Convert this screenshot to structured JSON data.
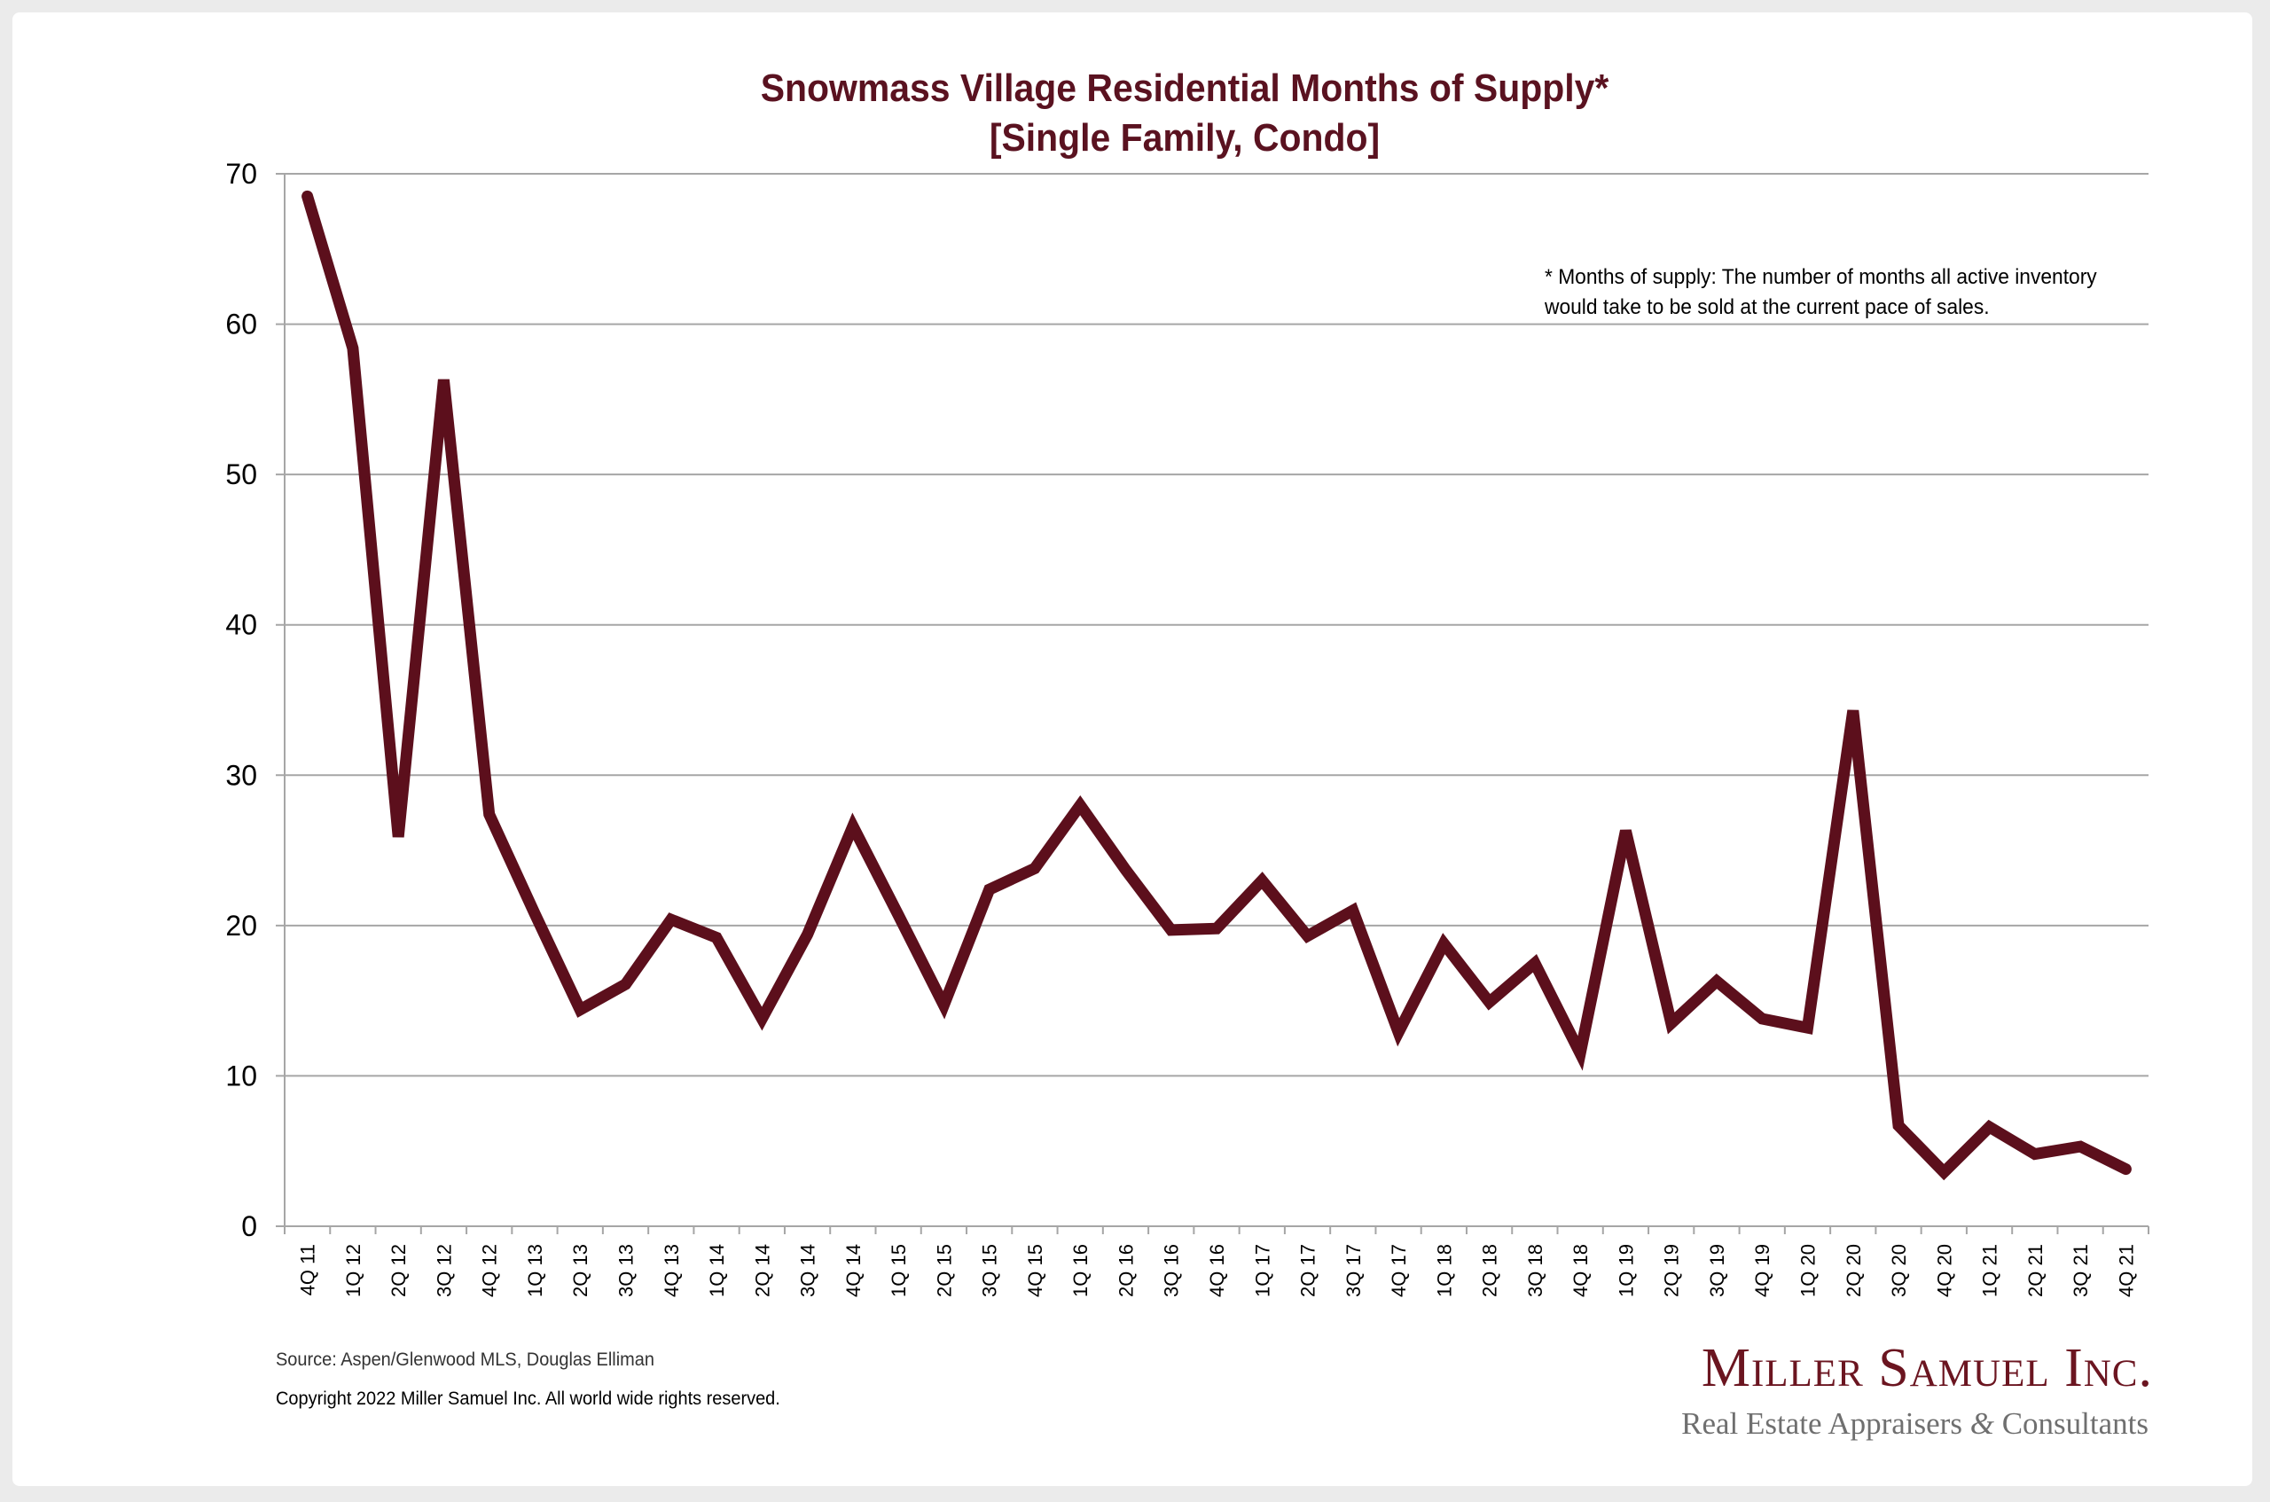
{
  "chart_data": {
    "type": "line",
    "title": "Snowmass Village Residential Months of Supply*",
    "subtitle": "[Single Family, Condo]",
    "xlabel": "",
    "ylabel": "",
    "ylim": [
      0,
      70
    ],
    "yticks": [
      0,
      10,
      20,
      30,
      40,
      50,
      60,
      70
    ],
    "grid": true,
    "legend": "none",
    "line_color": "#5c0f1c",
    "categories": [
      "4Q 11",
      "1Q 12",
      "2Q 12",
      "3Q 12",
      "4Q 12",
      "1Q 13",
      "2Q 13",
      "3Q 13",
      "4Q 13",
      "1Q 14",
      "2Q 14",
      "3Q 14",
      "4Q 14",
      "1Q 15",
      "2Q 15",
      "3Q 15",
      "4Q 15",
      "1Q 16",
      "2Q 16",
      "3Q 16",
      "4Q 16",
      "1Q 17",
      "2Q 17",
      "3Q 17",
      "4Q 17",
      "1Q 18",
      "2Q 18",
      "3Q 18",
      "4Q 18",
      "1Q 19",
      "2Q 19",
      "3Q 19",
      "4Q 19",
      "1Q 20",
      "2Q 20",
      "3Q 20",
      "4Q 20",
      "1Q 21",
      "2Q 21",
      "3Q 21",
      "4Q 21"
    ],
    "series": [
      {
        "name": "Months of Supply",
        "values": [
          68.5,
          58.4,
          25.9,
          56.3,
          27.4,
          20.8,
          14.4,
          16.1,
          20.4,
          19.2,
          13.8,
          19.4,
          26.6,
          20.7,
          14.7,
          22.4,
          23.8,
          28.0,
          23.7,
          19.7,
          19.8,
          23.0,
          19.3,
          21.0,
          12.9,
          18.8,
          14.9,
          17.5,
          11.5,
          26.3,
          13.5,
          16.3,
          13.8,
          13.2,
          34.3,
          6.7,
          3.6,
          6.6,
          4.8,
          5.3,
          3.8
        ]
      }
    ],
    "annotation": "* Months of supply: The number of months all active inventory would take to be sold at the current pace of sales."
  },
  "footer": {
    "source": "Source: Aspen/Glenwood MLS, Douglas Elliman",
    "copyright": "Copyright 2022 Miller Samuel Inc.  All world wide rights reserved."
  },
  "logo": {
    "name": "Miller Samuel Inc.",
    "tagline_part1": "Real Estate Appraisers ",
    "tagline_amp": "&",
    "tagline_part2": " Consultants"
  },
  "colors": {
    "title": "#5a1220",
    "line": "#5c0f1c",
    "grid": "#a6a6a6",
    "logo_name": "#6b1520",
    "logo_tag": "#6f6f6f"
  }
}
